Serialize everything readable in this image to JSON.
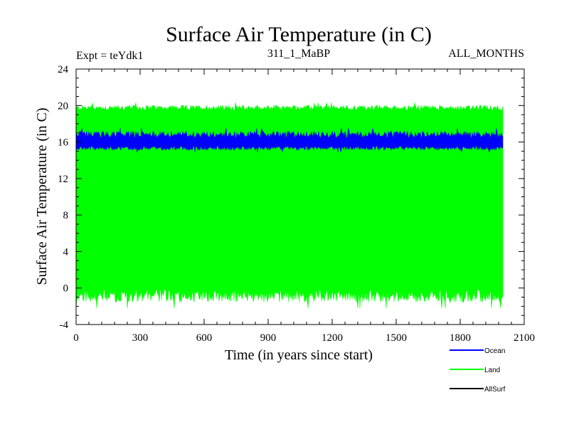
{
  "chart_data": {
    "type": "line",
    "title": "Surface Air Temperature (in C)",
    "subtitle_left": "Expt = teYdk1",
    "subtitle_center": "311_1_MaBP",
    "subtitle_right": "ALL_MONTHS",
    "xlabel": "Time (in years since start)",
    "ylabel": "Surface Air Temperature (in C)",
    "xlim": [
      0,
      2100
    ],
    "ylim": [
      -4,
      24
    ],
    "xticks": [
      0,
      300,
      600,
      900,
      1200,
      1500,
      1800,
      2100
    ],
    "yticks": [
      -4,
      0,
      4,
      8,
      12,
      16,
      20,
      24
    ],
    "x_range": [
      0,
      2000
    ],
    "series": [
      {
        "name": "Land",
        "color": "#00ff00",
        "band_min": -1.0,
        "band_max": 19.8,
        "min_extreme": -2.2,
        "max_extreme": 20.3
      },
      {
        "name": "Ocean",
        "color": "#0000ff",
        "band_min": 15.3,
        "band_max": 16.9,
        "min_extreme": 14.9,
        "max_extreme": 17.5
      },
      {
        "name": "AllSurf",
        "color": "#000000",
        "band_min": null,
        "band_max": null,
        "min_extreme": null,
        "max_extreme": null
      }
    ],
    "legend": [
      {
        "name": "Ocean",
        "color": "#0000ff"
      },
      {
        "name": "Land",
        "color": "#00ff00"
      },
      {
        "name": "AllSurf",
        "color": "#000000"
      }
    ],
    "legend_position": "bottom-right"
  }
}
